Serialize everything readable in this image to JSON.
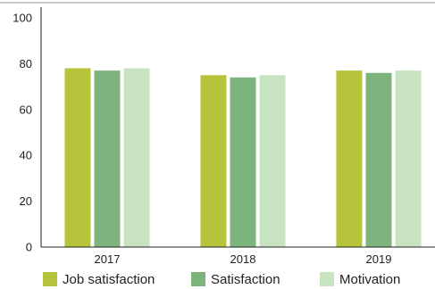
{
  "chart_data": {
    "type": "bar",
    "categories": [
      "2017",
      "2018",
      "2019"
    ],
    "series": [
      {
        "name": "Job satisfaction",
        "values": [
          78,
          75,
          77
        ],
        "color": "#b5c43a"
      },
      {
        "name": "Satisfaction",
        "values": [
          77,
          74,
          76
        ],
        "color": "#7db47d"
      },
      {
        "name": "Motivation",
        "values": [
          78,
          75,
          77
        ],
        "color": "#c8e3c0"
      }
    ],
    "ylim": [
      0,
      100
    ],
    "yticks": [
      0,
      20,
      40,
      60,
      80,
      100
    ],
    "title": "",
    "xlabel": "",
    "ylabel": "",
    "grid": false,
    "legend_position": "bottom"
  }
}
